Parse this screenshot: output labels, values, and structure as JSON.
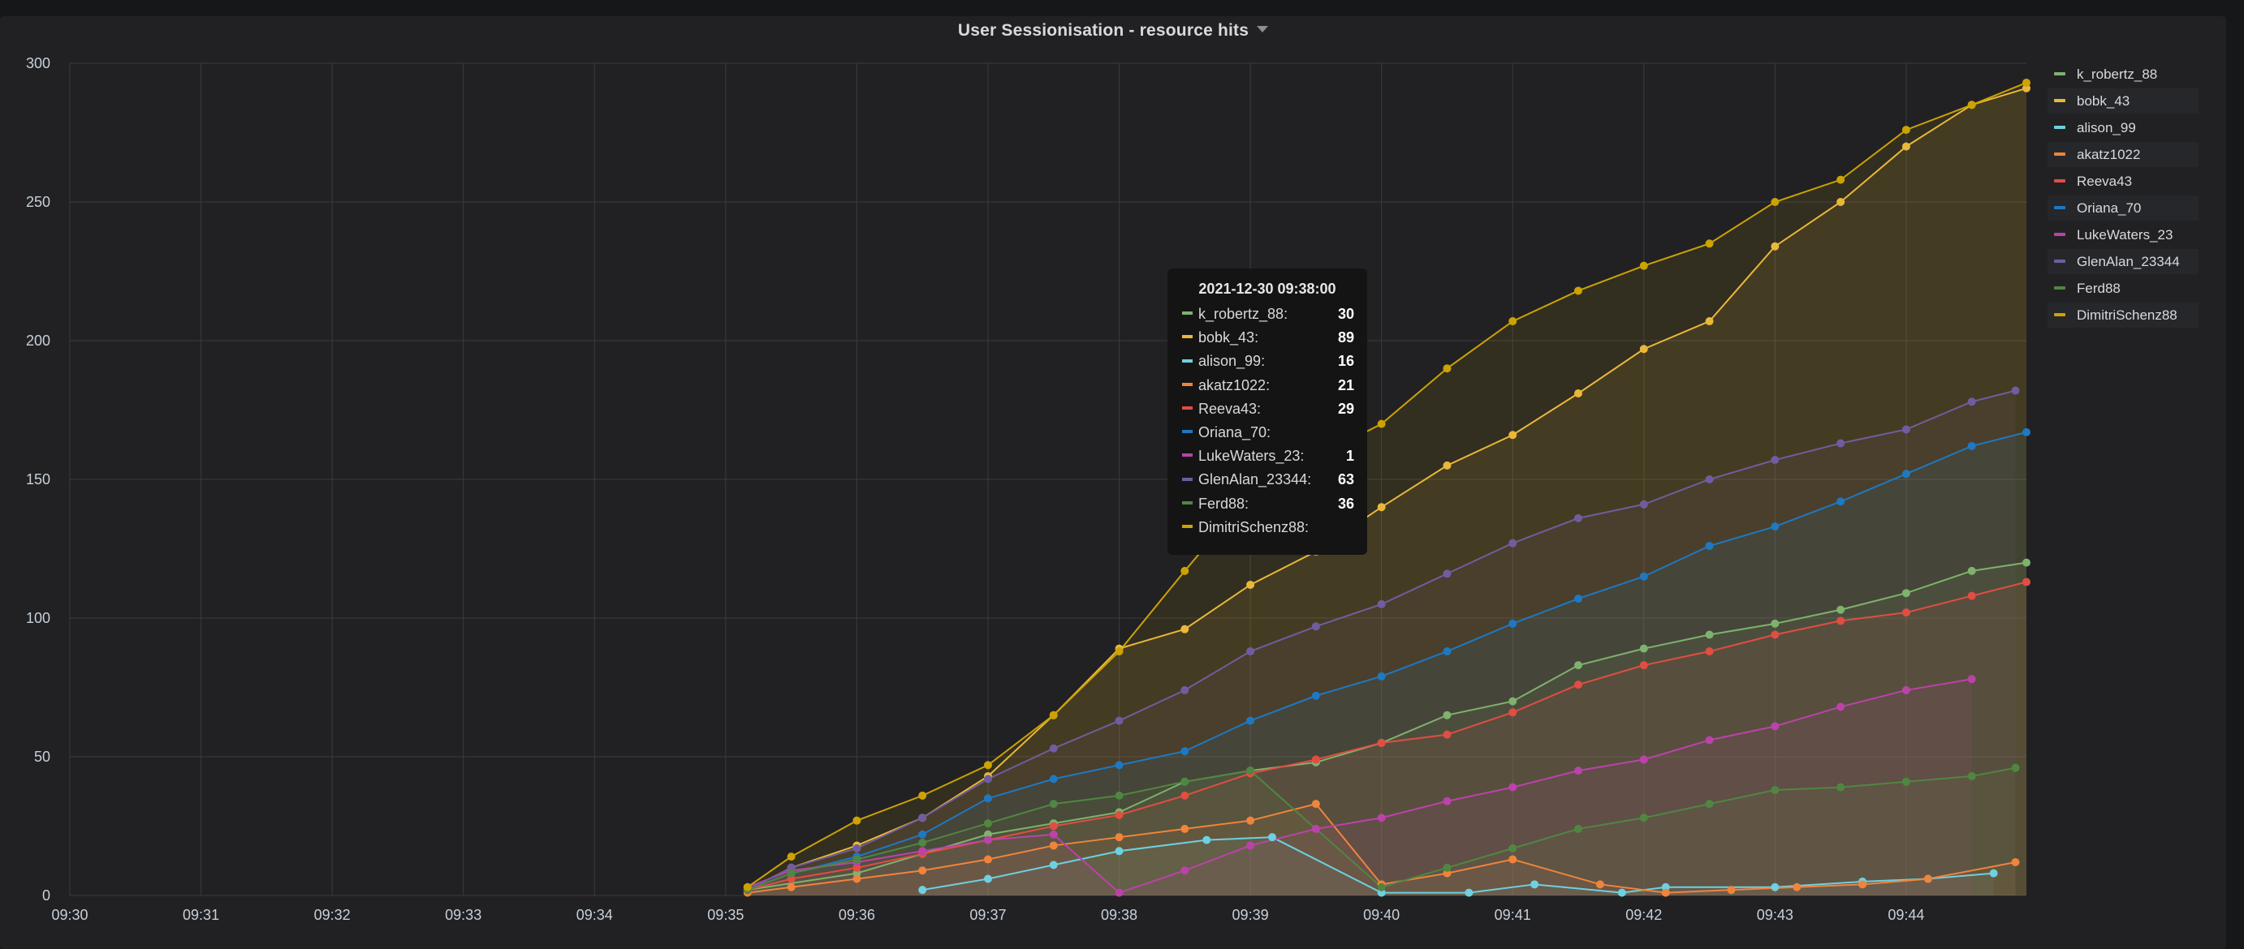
{
  "panel": {
    "title": "User Sessionisation - resource hits"
  },
  "legend": [
    {
      "name": "k_robertz_88",
      "color": "#7eb26d"
    },
    {
      "name": "bobk_43",
      "color": "#eab839"
    },
    {
      "name": "alison_99",
      "color": "#6ed0e0"
    },
    {
      "name": "akatz1022",
      "color": "#ef843c"
    },
    {
      "name": "Reeva43",
      "color": "#e24d42"
    },
    {
      "name": "Oriana_70",
      "color": "#1f78c1"
    },
    {
      "name": "LukeWaters_23",
      "color": "#ba43a9"
    },
    {
      "name": "GlenAlan_23344",
      "color": "#705da0"
    },
    {
      "name": "Ferd88",
      "color": "#508642"
    },
    {
      "name": "DimitriSchenz88",
      "color": "#cca300"
    }
  ],
  "tooltip": {
    "time": "2021-12-30 09:38:00",
    "rows": [
      {
        "name": "k_robertz_88:",
        "value": "30"
      },
      {
        "name": "bobk_43:",
        "value": "89"
      },
      {
        "name": "alison_99:",
        "value": "16"
      },
      {
        "name": "akatz1022:",
        "value": "21"
      },
      {
        "name": "Reeva43:",
        "value": "29"
      },
      {
        "name": "Oriana_70:",
        "value": ""
      },
      {
        "name": "LukeWaters_23:",
        "value": "1"
      },
      {
        "name": "GlenAlan_23344:",
        "value": "63"
      },
      {
        "name": "Ferd88:",
        "value": "36"
      },
      {
        "name": "DimitriSchenz88:",
        "value": ""
      }
    ]
  },
  "chart_data": {
    "type": "area",
    "title": "User Sessionisation - resource hits",
    "xlabel": "",
    "ylabel": "",
    "x_ticks": [
      "09:30",
      "09:31",
      "09:32",
      "09:33",
      "09:34",
      "09:35",
      "09:36",
      "09:37",
      "09:38",
      "09:39",
      "09:40",
      "09:41",
      "09:42",
      "09:43",
      "09:44"
    ],
    "y_ticks": [
      "0",
      "50",
      "100",
      "150",
      "200",
      "250",
      "300"
    ],
    "xlim": [
      "09:30",
      "09:44:55"
    ],
    "ylim": [
      0,
      300
    ],
    "grid": true,
    "legend_position": "right",
    "stacked": false,
    "series": [
      {
        "name": "k_robertz_88",
        "color": "#7eb26d",
        "x": [
          "09:35:10",
          "09:36:00",
          "09:36:30",
          "09:37:00",
          "09:37:30",
          "09:38:00",
          "09:38:30",
          "09:39:00",
          "09:39:30",
          "09:40:00",
          "09:40:30",
          "09:41:00",
          "09:41:30",
          "09:42:00",
          "09:42:30",
          "09:43:00",
          "09:43:30",
          "09:44:00",
          "09:44:30",
          "09:44:55"
        ],
        "y": [
          2,
          8,
          15,
          22,
          26,
          30,
          41,
          45,
          48,
          55,
          65,
          70,
          83,
          89,
          94,
          98,
          103,
          109,
          117,
          120
        ]
      },
      {
        "name": "bobk_43",
        "color": "#eab839",
        "x": [
          "09:35:10",
          "09:35:30",
          "09:36:00",
          "09:36:30",
          "09:37:00",
          "09:37:30",
          "09:38:00",
          "09:38:30",
          "09:39:00",
          "09:39:30",
          "09:40:00",
          "09:40:30",
          "09:41:00",
          "09:41:30",
          "09:42:00",
          "09:42:30",
          "09:43:00",
          "09:43:30",
          "09:44:00",
          "09:44:30",
          "09:44:55"
        ],
        "y": [
          2,
          10,
          18,
          28,
          43,
          65,
          89,
          96,
          112,
          124,
          140,
          155,
          166,
          181,
          197,
          207,
          234,
          250,
          270,
          285,
          291
        ]
      },
      {
        "name": "alison_99",
        "color": "#6ed0e0",
        "x": [
          "09:36:30",
          "09:37:00",
          "09:37:30",
          "09:38:00",
          "09:38:40",
          "09:39:10",
          "09:40:00",
          "09:40:40",
          "09:41:10",
          "09:41:50",
          "09:42:10",
          "09:43:00",
          "09:43:40",
          "09:44:10",
          "09:44:40"
        ],
        "y": [
          2,
          6,
          11,
          16,
          20,
          21,
          1,
          1,
          4,
          1,
          3,
          3,
          5,
          6,
          8
        ]
      },
      {
        "name": "akatz1022",
        "color": "#ef843c",
        "x": [
          "09:35:10",
          "09:35:30",
          "09:36:00",
          "09:36:30",
          "09:37:00",
          "09:37:30",
          "09:38:00",
          "09:38:30",
          "09:39:00",
          "09:39:30",
          "09:40:00",
          "09:40:30",
          "09:41:00",
          "09:41:40",
          "09:42:10",
          "09:42:40",
          "09:43:10",
          "09:43:40",
          "09:44:10",
          "09:44:50"
        ],
        "y": [
          1,
          3,
          6,
          9,
          13,
          18,
          21,
          24,
          27,
          33,
          4,
          8,
          13,
          4,
          1,
          2,
          3,
          4,
          6,
          12
        ]
      },
      {
        "name": "Reeva43",
        "color": "#e24d42",
        "x": [
          "09:35:10",
          "09:35:30",
          "09:36:00",
          "09:36:30",
          "09:37:00",
          "09:37:30",
          "09:38:00",
          "09:38:30",
          "09:39:00",
          "09:39:30",
          "09:40:00",
          "09:40:30",
          "09:41:00",
          "09:41:30",
          "09:42:00",
          "09:42:30",
          "09:43:00",
          "09:43:30",
          "09:44:00",
          "09:44:30",
          "09:44:55"
        ],
        "y": [
          2,
          6,
          10,
          15,
          20,
          25,
          29,
          36,
          44,
          49,
          55,
          58,
          66,
          76,
          83,
          88,
          94,
          99,
          102,
          108,
          113
        ]
      },
      {
        "name": "Oriana_70",
        "color": "#1f78c1",
        "x": [
          "09:35:10",
          "09:35:30",
          "09:36:00",
          "09:36:30",
          "09:37:00",
          "09:37:30",
          "09:38:00",
          "09:38:30",
          "09:39:00",
          "09:39:30",
          "09:40:00",
          "09:40:30",
          "09:41:00",
          "09:41:30",
          "09:42:00",
          "09:42:30",
          "09:43:00",
          "09:43:30",
          "09:44:00",
          "09:44:30",
          "09:44:55"
        ],
        "y": [
          2,
          8,
          14,
          22,
          35,
          42,
          47,
          52,
          63,
          72,
          79,
          88,
          98,
          107,
          115,
          126,
          133,
          142,
          152,
          162,
          167
        ]
      },
      {
        "name": "LukeWaters_23",
        "color": "#ba43a9",
        "x": [
          "09:35:10",
          "09:35:30",
          "09:36:00",
          "09:36:30",
          "09:37:00",
          "09:37:30",
          "09:38:00",
          "09:38:30",
          "09:39:00",
          "09:39:30",
          "09:40:00",
          "09:40:30",
          "09:41:00",
          "09:41:30",
          "09:42:00",
          "09:42:30",
          "09:43:00",
          "09:43:30",
          "09:44:00",
          "09:44:30"
        ],
        "y": [
          3,
          9,
          12,
          16,
          20,
          22,
          1,
          9,
          18,
          24,
          28,
          34,
          39,
          45,
          49,
          56,
          61,
          68,
          74,
          78
        ]
      },
      {
        "name": "GlenAlan_23344",
        "color": "#705da0",
        "x": [
          "09:35:10",
          "09:35:30",
          "09:36:00",
          "09:36:30",
          "09:37:00",
          "09:37:30",
          "09:38:00",
          "09:38:30",
          "09:39:00",
          "09:39:30",
          "09:40:00",
          "09:40:30",
          "09:41:00",
          "09:41:30",
          "09:42:00",
          "09:42:30",
          "09:43:00",
          "09:43:30",
          "09:44:00",
          "09:44:30",
          "09:44:50"
        ],
        "y": [
          2,
          10,
          17,
          28,
          42,
          53,
          63,
          74,
          88,
          97,
          105,
          116,
          127,
          136,
          141,
          150,
          157,
          163,
          168,
          178,
          182
        ]
      },
      {
        "name": "Ferd88",
        "color": "#508642",
        "x": [
          "09:35:10",
          "09:35:30",
          "09:36:00",
          "09:36:30",
          "09:37:00",
          "09:37:30",
          "09:38:00",
          "09:38:30",
          "09:39:00",
          "09:40:00",
          "09:40:30",
          "09:41:00",
          "09:41:30",
          "09:42:00",
          "09:42:30",
          "09:43:00",
          "09:43:30",
          "09:44:00",
          "09:44:30",
          "09:44:50"
        ],
        "y": [
          2,
          8,
          13,
          19,
          26,
          33,
          36,
          41,
          45,
          3,
          10,
          17,
          24,
          28,
          33,
          38,
          39,
          41,
          43,
          46
        ]
      },
      {
        "name": "DimitriSchenz88",
        "color": "#cca300",
        "x": [
          "09:35:10",
          "09:35:30",
          "09:36:00",
          "09:36:30",
          "09:37:00",
          "09:37:30",
          "09:38:00",
          "09:38:30",
          "09:39:00",
          "09:39:30",
          "09:40:00",
          "09:40:30",
          "09:41:00",
          "09:41:30",
          "09:42:00",
          "09:42:30",
          "09:43:00",
          "09:43:30",
          "09:44:00",
          "09:44:30",
          "09:44:55"
        ],
        "y": [
          3,
          14,
          27,
          36,
          47,
          65,
          88,
          117,
          145,
          158,
          170,
          190,
          207,
          218,
          227,
          235,
          250,
          258,
          276,
          285,
          293
        ]
      }
    ]
  }
}
